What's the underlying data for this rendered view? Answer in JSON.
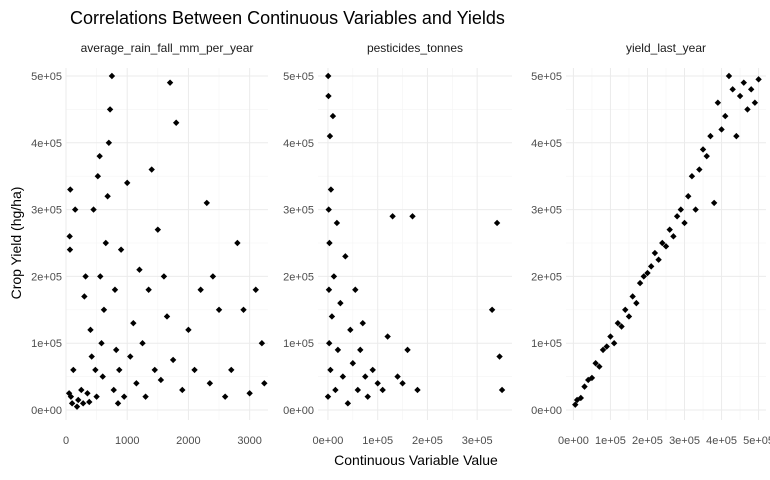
{
  "chart_data": {
    "type": "scatter",
    "title": "Correlations Between Continuous Variables and Yields",
    "xlabel": "Continuous Variable Value",
    "ylabel": "Crop Yield (hg/ha)",
    "grid": true,
    "legend": "none",
    "point_color": "#000000",
    "y_range": [
      0,
      500000
    ],
    "y_ticks": [
      0,
      100000,
      200000,
      300000,
      400000,
      500000
    ],
    "y_tick_labels": [
      "0e+00",
      "1e+05",
      "2e+05",
      "3e+05",
      "4e+05",
      "5e+05"
    ],
    "panels": [
      {
        "name": "average_rain_fall_mm_per_year",
        "x_range": [
          0,
          3300
        ],
        "x_ticks": [
          0,
          1000,
          2000,
          3000
        ],
        "x_tick_labels": [
          "0",
          "1000",
          "2000",
          "3000"
        ],
        "points": [
          [
            51,
            25000
          ],
          [
            60,
            260000
          ],
          [
            65,
            240000
          ],
          [
            70,
            330000
          ],
          [
            80,
            20000
          ],
          [
            100,
            10000
          ],
          [
            120,
            60000
          ],
          [
            150,
            300000
          ],
          [
            180,
            5000
          ],
          [
            200,
            15000
          ],
          [
            250,
            30000
          ],
          [
            280,
            10000
          ],
          [
            300,
            170000
          ],
          [
            320,
            200000
          ],
          [
            350,
            25000
          ],
          [
            380,
            12000
          ],
          [
            400,
            120000
          ],
          [
            420,
            80000
          ],
          [
            450,
            300000
          ],
          [
            480,
            60000
          ],
          [
            500,
            20000
          ],
          [
            520,
            350000
          ],
          [
            550,
            380000
          ],
          [
            560,
            200000
          ],
          [
            580,
            100000
          ],
          [
            600,
            50000
          ],
          [
            620,
            150000
          ],
          [
            650,
            250000
          ],
          [
            680,
            320000
          ],
          [
            700,
            400000
          ],
          [
            720,
            450000
          ],
          [
            750,
            500000
          ],
          [
            780,
            30000
          ],
          [
            800,
            180000
          ],
          [
            820,
            90000
          ],
          [
            850,
            10000
          ],
          [
            870,
            60000
          ],
          [
            900,
            240000
          ],
          [
            950,
            20000
          ],
          [
            1000,
            340000
          ],
          [
            1050,
            80000
          ],
          [
            1100,
            130000
          ],
          [
            1150,
            40000
          ],
          [
            1200,
            210000
          ],
          [
            1250,
            100000
          ],
          [
            1300,
            20000
          ],
          [
            1350,
            180000
          ],
          [
            1400,
            360000
          ],
          [
            1450,
            60000
          ],
          [
            1500,
            270000
          ],
          [
            1550,
            45000
          ],
          [
            1600,
            200000
          ],
          [
            1650,
            140000
          ],
          [
            1700,
            490000
          ],
          [
            1750,
            75000
          ],
          [
            1800,
            430000
          ],
          [
            1900,
            30000
          ],
          [
            2000,
            120000
          ],
          [
            2100,
            60000
          ],
          [
            2200,
            180000
          ],
          [
            2300,
            310000
          ],
          [
            2350,
            40000
          ],
          [
            2400,
            200000
          ],
          [
            2500,
            150000
          ],
          [
            2600,
            20000
          ],
          [
            2700,
            60000
          ],
          [
            2800,
            250000
          ],
          [
            2900,
            150000
          ],
          [
            3000,
            25000
          ],
          [
            3100,
            180000
          ],
          [
            3200,
            100000
          ],
          [
            3240,
            40000
          ]
        ]
      },
      {
        "name": "pesticides_tonnes",
        "x_range": [
          -20000,
          370000
        ],
        "x_ticks": [
          0,
          100000,
          200000,
          300000
        ],
        "x_tick_labels": [
          "0e+00",
          "1e+05",
          "2e+05",
          "3e+05"
        ],
        "points": [
          [
            100,
            20000
          ],
          [
            500,
            500000
          ],
          [
            1000,
            470000
          ],
          [
            1500,
            300000
          ],
          [
            2000,
            180000
          ],
          [
            2500,
            100000
          ],
          [
            3000,
            250000
          ],
          [
            4000,
            410000
          ],
          [
            5000,
            60000
          ],
          [
            6000,
            330000
          ],
          [
            8000,
            140000
          ],
          [
            10000,
            440000
          ],
          [
            12000,
            200000
          ],
          [
            15000,
            30000
          ],
          [
            18000,
            280000
          ],
          [
            20000,
            90000
          ],
          [
            25000,
            160000
          ],
          [
            30000,
            50000
          ],
          [
            35000,
            230000
          ],
          [
            40000,
            10000
          ],
          [
            45000,
            120000
          ],
          [
            50000,
            70000
          ],
          [
            55000,
            180000
          ],
          [
            60000,
            30000
          ],
          [
            65000,
            90000
          ],
          [
            70000,
            130000
          ],
          [
            75000,
            50000
          ],
          [
            80000,
            20000
          ],
          [
            90000,
            60000
          ],
          [
            100000,
            40000
          ],
          [
            110000,
            30000
          ],
          [
            120000,
            110000
          ],
          [
            130000,
            290000
          ],
          [
            140000,
            50000
          ],
          [
            150000,
            40000
          ],
          [
            160000,
            90000
          ],
          [
            170000,
            290000
          ],
          [
            180000,
            30000
          ],
          [
            330000,
            150000
          ],
          [
            340000,
            280000
          ],
          [
            345000,
            80000
          ],
          [
            350000,
            30000
          ]
        ]
      },
      {
        "name": "yield_last_year",
        "x_range": [
          -20000,
          520000
        ],
        "x_ticks": [
          0,
          100000,
          200000,
          300000,
          400000,
          500000
        ],
        "x_tick_labels": [
          "0e+00",
          "1e+05",
          "2e+05",
          "3e+05",
          "4e+05",
          "5e+05"
        ],
        "points": [
          [
            5000,
            8000
          ],
          [
            10000,
            15000
          ],
          [
            20000,
            18000
          ],
          [
            30000,
            35000
          ],
          [
            40000,
            45000
          ],
          [
            50000,
            48000
          ],
          [
            60000,
            70000
          ],
          [
            70000,
            65000
          ],
          [
            80000,
            90000
          ],
          [
            90000,
            95000
          ],
          [
            100000,
            110000
          ],
          [
            110000,
            100000
          ],
          [
            120000,
            130000
          ],
          [
            130000,
            125000
          ],
          [
            140000,
            150000
          ],
          [
            150000,
            140000
          ],
          [
            160000,
            170000
          ],
          [
            170000,
            160000
          ],
          [
            180000,
            190000
          ],
          [
            190000,
            200000
          ],
          [
            200000,
            205000
          ],
          [
            210000,
            215000
          ],
          [
            220000,
            235000
          ],
          [
            230000,
            225000
          ],
          [
            240000,
            250000
          ],
          [
            250000,
            245000
          ],
          [
            260000,
            270000
          ],
          [
            270000,
            260000
          ],
          [
            280000,
            290000
          ],
          [
            290000,
            300000
          ],
          [
            300000,
            280000
          ],
          [
            310000,
            320000
          ],
          [
            320000,
            350000
          ],
          [
            330000,
            300000
          ],
          [
            340000,
            360000
          ],
          [
            350000,
            390000
          ],
          [
            360000,
            380000
          ],
          [
            370000,
            410000
          ],
          [
            380000,
            310000
          ],
          [
            390000,
            460000
          ],
          [
            400000,
            420000
          ],
          [
            410000,
            440000
          ],
          [
            420000,
            500000
          ],
          [
            430000,
            480000
          ],
          [
            440000,
            410000
          ],
          [
            450000,
            470000
          ],
          [
            460000,
            490000
          ],
          [
            470000,
            450000
          ],
          [
            480000,
            480000
          ],
          [
            490000,
            460000
          ],
          [
            500000,
            495000
          ]
        ]
      }
    ]
  }
}
